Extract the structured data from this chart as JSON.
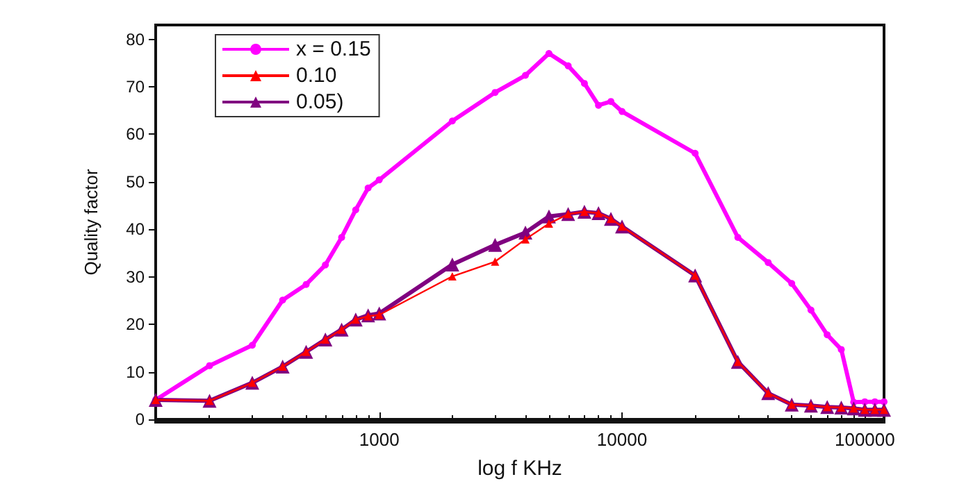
{
  "chart_data": {
    "type": "line",
    "xlabel": "log f KHz",
    "ylabel": "Quality factor",
    "log": "x",
    "xlim": [
      120,
      120000
    ],
    "xticks": [
      1000,
      10000,
      100000
    ],
    "ylim": [
      0,
      83
    ],
    "yticks": [
      0,
      10,
      20,
      30,
      40,
      50,
      60,
      70,
      80
    ],
    "grid": false,
    "legend": "top left",
    "series": [
      {
        "name": "x = 0.15",
        "color": "#ff00ff",
        "marker": "circle",
        "x": [
          120,
          200,
          300,
          400,
          500,
          600,
          700,
          800,
          900,
          1000,
          2000,
          3000,
          4000,
          5000,
          6000,
          7000,
          8000,
          9000,
          10000,
          20000,
          30000,
          40000,
          50000,
          60000,
          70000,
          80000,
          90000,
          100000,
          110000,
          120000
        ],
        "values": [
          4.1,
          11.3,
          15.6,
          25.1,
          28.4,
          32.5,
          38.3,
          44.1,
          48.7,
          50.4,
          62.8,
          68.8,
          72.4,
          77.0,
          74.4,
          70.7,
          66.1,
          66.9,
          64.8,
          56.0,
          38.3,
          33.0,
          28.6,
          23.0,
          17.8,
          14.7,
          3.6,
          3.7,
          3.7,
          3.7
        ]
      },
      {
        "name": "0.10",
        "color": "#ff0000",
        "marker": "triangle",
        "x": [
          120,
          200,
          300,
          400,
          500,
          600,
          700,
          800,
          900,
          1000,
          2000,
          3000,
          4000,
          5000,
          6000,
          7000,
          8000,
          9000,
          10000,
          20000,
          30000,
          40000,
          50000,
          60000,
          70000,
          80000,
          90000,
          100000,
          110000,
          120000
        ],
        "values": [
          4.1,
          3.9,
          7.7,
          11.1,
          14.2,
          16.8,
          18.9,
          21.0,
          21.7,
          22.0,
          30.1,
          33.2,
          37.9,
          41.2,
          43.2,
          43.7,
          43.4,
          42.2,
          40.6,
          30.3,
          12.1,
          5.5,
          3.1,
          2.9,
          2.6,
          2.5,
          2.3,
          2.0,
          2.0,
          2.0
        ]
      },
      {
        "name": "0.05)",
        "color": "#800080",
        "marker": "triangle",
        "x": [
          120,
          200,
          300,
          400,
          500,
          600,
          700,
          800,
          900,
          1000,
          2000,
          3000,
          4000,
          5000,
          6000,
          7000,
          8000,
          9000,
          10000,
          20000,
          30000,
          40000,
          50000,
          60000,
          70000,
          80000,
          90000,
          100000,
          110000,
          120000
        ],
        "values": [
          4.1,
          3.9,
          7.7,
          11.1,
          14.2,
          16.8,
          18.9,
          21.0,
          21.9,
          22.3,
          32.6,
          36.7,
          39.3,
          42.7,
          43.2,
          43.7,
          43.4,
          42.2,
          40.6,
          30.3,
          12.1,
          5.5,
          3.1,
          2.9,
          2.6,
          2.5,
          2.3,
          2.0,
          2.0,
          2.0
        ]
      }
    ]
  }
}
